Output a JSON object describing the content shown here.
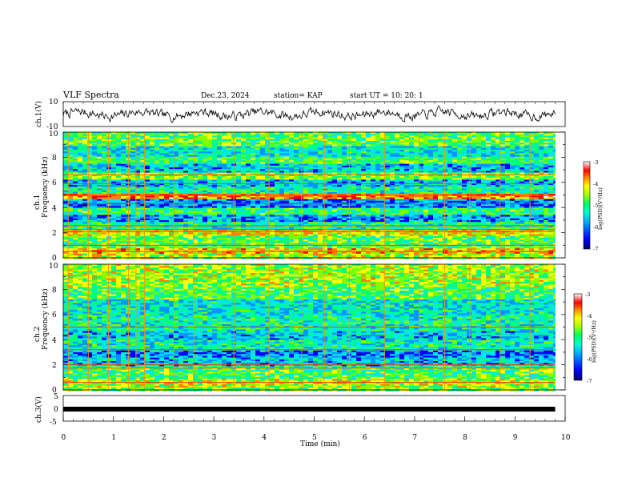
{
  "header": {
    "title": "VLF Spectra",
    "date": "Dec.23, 2024",
    "station": "station= KAP",
    "start_ut": "start  UT  =   10: 20: 1"
  },
  "colors": {
    "colormap": [
      "#00006e",
      "#0000ff",
      "#0096ff",
      "#00e6e6",
      "#00ff80",
      "#80ff00",
      "#ffff00",
      "#ff8000",
      "#ff0000",
      "#ffffff"
    ]
  },
  "chart_data": [
    {
      "type": "line",
      "name": "ch1-voltage",
      "ylabel": "ch.1(V)",
      "ylim": [
        -10,
        10
      ],
      "yticks": [
        "10",
        "-10"
      ],
      "xlim": [
        0,
        10
      ],
      "data_end": 9.8,
      "series": [
        {
          "name": "ch.1",
          "color": "#000000",
          "description_stat": "noisy waveform ~ -4 to 3 V"
        }
      ]
    },
    {
      "type": "heatmap",
      "name": "ch1-spectrogram",
      "ylabel_lines": [
        "ch.1",
        "Frequency  (kHz)"
      ],
      "ylim": [
        0,
        10
      ],
      "yticks": [
        "0",
        "2",
        "4",
        "6",
        "8",
        "10"
      ],
      "xlim": [
        0,
        10
      ],
      "data_end": 9.8,
      "colorbar": {
        "label": "log(PSD)(V²/Hz)",
        "min": -7,
        "max": -3,
        "ticks": [
          "-3",
          "-4",
          "-5",
          "-6",
          "-7"
        ]
      },
      "bands": [
        {
          "f0": 0.0,
          "f1": 0.35,
          "level": 0.62
        },
        {
          "f0": 0.35,
          "f1": 0.8,
          "level": 0.7
        },
        {
          "f0": 0.8,
          "f1": 1.8,
          "level": 0.5
        },
        {
          "f0": 1.8,
          "f1": 2.4,
          "level": 0.66
        },
        {
          "f0": 2.4,
          "f1": 2.9,
          "level": 0.42
        },
        {
          "f0": 2.9,
          "f1": 3.5,
          "level": 0.24
        },
        {
          "f0": 3.5,
          "f1": 4.1,
          "level": 0.45
        },
        {
          "f0": 4.1,
          "f1": 4.8,
          "level": 0.22
        },
        {
          "f0": 4.8,
          "f1": 5.2,
          "level": 0.78
        },
        {
          "f0": 5.2,
          "f1": 5.7,
          "level": 0.4
        },
        {
          "f0": 5.7,
          "f1": 6.3,
          "level": 0.28
        },
        {
          "f0": 6.3,
          "f1": 6.9,
          "level": 0.56
        },
        {
          "f0": 6.9,
          "f1": 7.5,
          "level": 0.3
        },
        {
          "f0": 7.5,
          "f1": 8.1,
          "level": 0.47
        },
        {
          "f0": 8.1,
          "f1": 9.0,
          "level": 0.35
        },
        {
          "f0": 9.0,
          "f1": 10.0,
          "level": 0.5
        }
      ],
      "lines_khz": [
        0.5,
        1.0,
        2.1,
        2.25,
        2.55,
        4.3,
        4.95,
        5.05,
        5.9,
        6.6
      ],
      "sferics_min": [
        0.1,
        0.5,
        0.9,
        1.3,
        1.45,
        1.62,
        2.2,
        2.6,
        3.4,
        4.1,
        4.75,
        5.2,
        5.7,
        6.4,
        7.1,
        7.6,
        8.1,
        8.7,
        9.3
      ]
    },
    {
      "type": "heatmap",
      "name": "ch2-spectrogram",
      "ylabel_lines": [
        "ch.2",
        "Frequency  (kHz)"
      ],
      "ylim": [
        0,
        10
      ],
      "yticks": [
        "0",
        "2",
        "4",
        "6",
        "8",
        "10"
      ],
      "xlim": [
        0,
        10
      ],
      "data_end": 9.8,
      "colorbar": {
        "label": "log(PSD)(V²/Hz)",
        "min": -7,
        "max": -3,
        "ticks": [
          "-3",
          "-4",
          "-5",
          "-6",
          "-7"
        ]
      },
      "bands": [
        {
          "f0": 0.0,
          "f1": 0.3,
          "level": 0.55
        },
        {
          "f0": 0.3,
          "f1": 1.0,
          "level": 0.6
        },
        {
          "f0": 1.0,
          "f1": 1.9,
          "level": 0.48
        },
        {
          "f0": 1.9,
          "f1": 2.6,
          "level": 0.3
        },
        {
          "f0": 2.6,
          "f1": 3.2,
          "level": 0.22
        },
        {
          "f0": 3.2,
          "f1": 4.0,
          "level": 0.38
        },
        {
          "f0": 4.0,
          "f1": 4.8,
          "level": 0.3
        },
        {
          "f0": 4.8,
          "f1": 6.0,
          "level": 0.4
        },
        {
          "f0": 6.0,
          "f1": 7.2,
          "level": 0.35
        },
        {
          "f0": 7.2,
          "f1": 8.2,
          "level": 0.5
        },
        {
          "f0": 8.2,
          "f1": 10.0,
          "level": 0.58
        }
      ],
      "lines_khz": [
        0.6,
        1.75,
        2.0,
        3.2,
        5.0
      ],
      "sferics_min": [
        0.1,
        0.5,
        0.9,
        1.3,
        1.45,
        1.62,
        2.2,
        2.6,
        3.4,
        4.1,
        4.75,
        5.2,
        5.7,
        6.4,
        7.1,
        7.6,
        8.1,
        8.7,
        9.3
      ]
    },
    {
      "type": "line",
      "name": "ch3-voltage",
      "ylabel": "ch.3(V)",
      "ylim": [
        -5,
        5
      ],
      "yticks": [
        "5",
        "0",
        "-5"
      ],
      "xlim": [
        0,
        10
      ],
      "data_end": 9.8,
      "xlabel": "Time  (min)",
      "xticks": [
        "0",
        "1",
        "2",
        "3",
        "4",
        "5",
        "6",
        "7",
        "8",
        "9",
        "10"
      ],
      "series": [
        {
          "name": "ch.3",
          "color": "#000000",
          "description_stat": "flat thick band near 0 V",
          "value": 0
        }
      ]
    }
  ]
}
